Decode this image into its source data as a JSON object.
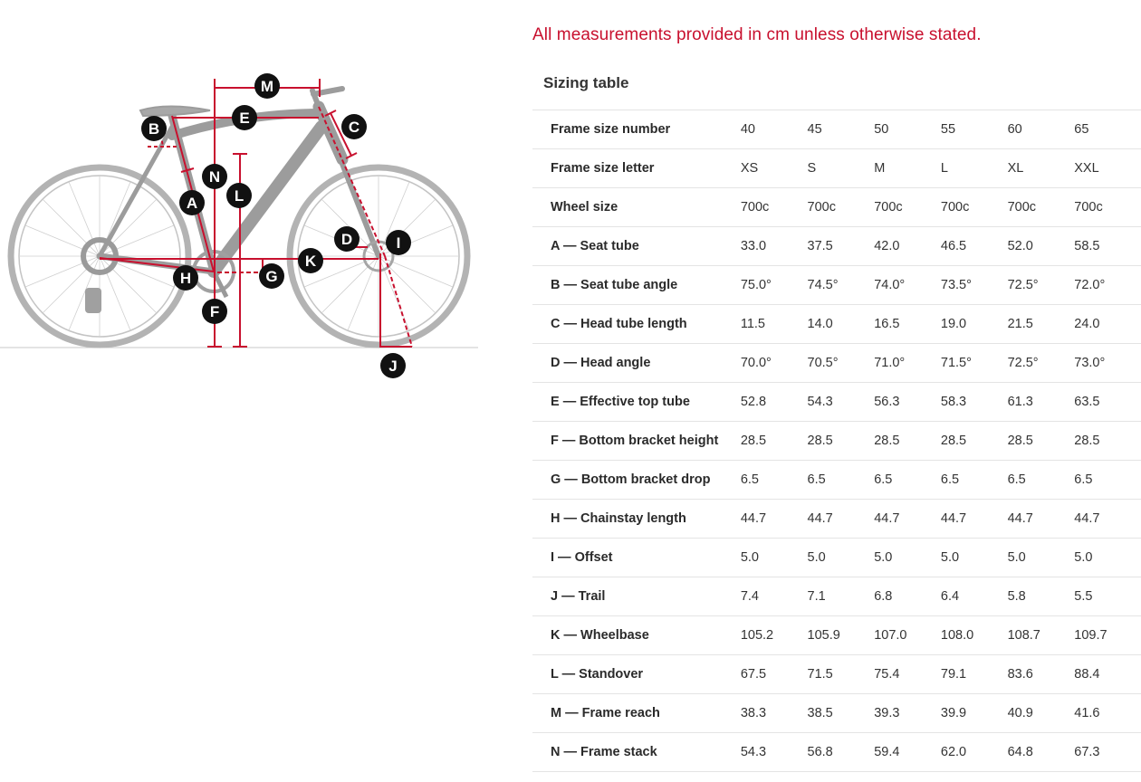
{
  "notice": "All measurements provided in cm unless otherwise stated.",
  "table_title": "Sizing table",
  "rows": [
    {
      "label": "Frame size number",
      "values": [
        "40",
        "45",
        "50",
        "55",
        "60",
        "65"
      ]
    },
    {
      "label": "Frame size letter",
      "values": [
        "XS",
        "S",
        "M",
        "L",
        "XL",
        "XXL"
      ]
    },
    {
      "label": "Wheel size",
      "values": [
        "700c",
        "700c",
        "700c",
        "700c",
        "700c",
        "700c"
      ]
    },
    {
      "label": "A — Seat tube",
      "values": [
        "33.0",
        "37.5",
        "42.0",
        "46.5",
        "52.0",
        "58.5"
      ]
    },
    {
      "label": "B — Seat tube angle",
      "values": [
        "75.0°",
        "74.5°",
        "74.0°",
        "73.5°",
        "72.5°",
        "72.0°"
      ]
    },
    {
      "label": "C — Head tube length",
      "values": [
        "11.5",
        "14.0",
        "16.5",
        "19.0",
        "21.5",
        "24.0"
      ]
    },
    {
      "label": "D — Head angle",
      "values": [
        "70.0°",
        "70.5°",
        "71.0°",
        "71.5°",
        "72.5°",
        "73.0°"
      ]
    },
    {
      "label": "E — Effective top tube",
      "values": [
        "52.8",
        "54.3",
        "56.3",
        "58.3",
        "61.3",
        "63.5"
      ]
    },
    {
      "label": "F — Bottom bracket height",
      "values": [
        "28.5",
        "28.5",
        "28.5",
        "28.5",
        "28.5",
        "28.5"
      ]
    },
    {
      "label": "G — Bottom bracket drop",
      "values": [
        "6.5",
        "6.5",
        "6.5",
        "6.5",
        "6.5",
        "6.5"
      ]
    },
    {
      "label": "H — Chainstay length",
      "values": [
        "44.7",
        "44.7",
        "44.7",
        "44.7",
        "44.7",
        "44.7"
      ]
    },
    {
      "label": "I — Offset",
      "values": [
        "5.0",
        "5.0",
        "5.0",
        "5.0",
        "5.0",
        "5.0"
      ]
    },
    {
      "label": "J — Trail",
      "values": [
        "7.4",
        "7.1",
        "6.8",
        "6.4",
        "5.8",
        "5.5"
      ]
    },
    {
      "label": "K — Wheelbase",
      "values": [
        "105.2",
        "105.9",
        "107.0",
        "108.0",
        "108.7",
        "109.7"
      ]
    },
    {
      "label": "L — Standover",
      "values": [
        "67.5",
        "71.5",
        "75.4",
        "79.1",
        "83.6",
        "88.4"
      ]
    },
    {
      "label": "M — Frame reach",
      "values": [
        "38.3",
        "38.5",
        "39.3",
        "39.9",
        "40.9",
        "41.6"
      ]
    },
    {
      "label": "N — Frame stack",
      "values": [
        "54.3",
        "56.8",
        "59.4",
        "62.0",
        "64.8",
        "67.3"
      ]
    }
  ],
  "diagram_badges": [
    "M",
    "B",
    "E",
    "C",
    "N",
    "L",
    "A",
    "D",
    "I",
    "K",
    "H",
    "G",
    "F",
    "J"
  ],
  "colors": {
    "accent": "#c8102e",
    "bike": "#a6a6a6",
    "badge": "#111111"
  },
  "icon": "bike-geometry-diagram"
}
